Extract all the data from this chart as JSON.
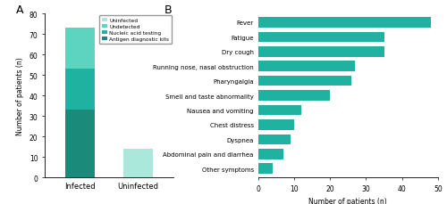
{
  "left": {
    "categories": [
      "Infected",
      "Uninfected"
    ],
    "stacks": [
      {
        "label": "Antigen diagnostic kits",
        "color": "#1a8a7a",
        "values": [
          33,
          0
        ]
      },
      {
        "label": "Nucleic acid testing",
        "color": "#20b2a0",
        "values": [
          20,
          0
        ]
      },
      {
        "label": "Undetected",
        "color": "#5dd4c0",
        "values": [
          20,
          0
        ]
      },
      {
        "label": "Uninfected",
        "color": "#aae8dc",
        "values": [
          0,
          14
        ]
      }
    ],
    "ylim": [
      0,
      80
    ],
    "yticks": [
      0,
      10,
      20,
      30,
      40,
      50,
      60,
      70,
      80
    ],
    "ylabel": "Number of patients (n)",
    "panel_label": "A"
  },
  "right": {
    "symptoms": [
      "Other symptoms",
      "Abdominal pain and diarrhea",
      "Dyspnea",
      "Chest distress",
      "Nausea and vomiting",
      "Smell and taste abnormality",
      "Pharyngalgia",
      "Running nose, nasal obstruction",
      "Dry cough",
      "Fatigue",
      "Fever"
    ],
    "values": [
      4,
      7,
      9,
      10,
      12,
      20,
      26,
      27,
      35,
      35,
      48
    ],
    "color": "#20b2a0",
    "xlim": [
      0,
      50
    ],
    "xticks": [
      0,
      10,
      20,
      30,
      40,
      50
    ],
    "xlabel": "Number of patients (n)",
    "panel_label": "B"
  }
}
